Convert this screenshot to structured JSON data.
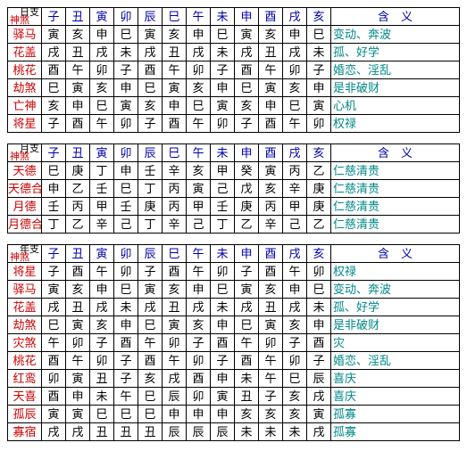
{
  "branches": [
    "子",
    "丑",
    "寅",
    "卯",
    "辰",
    "巳",
    "午",
    "未",
    "申",
    "酉",
    "戌",
    "亥"
  ],
  "meaning_header": "含义",
  "tables": [
    {
      "corner_top": "日支",
      "corner_bottom": "神煞",
      "rows": [
        {
          "label": "驿马",
          "cells": [
            "寅",
            "亥",
            "申",
            "巳",
            "寅",
            "亥",
            "申",
            "巳",
            "寅",
            "亥",
            "申",
            "巳"
          ],
          "meaning": "变动、奔波"
        },
        {
          "label": "花盖",
          "cells": [
            "戌",
            "丑",
            "戌",
            "未",
            "戌",
            "丑",
            "戌",
            "未",
            "戌",
            "丑",
            "戌",
            "未"
          ],
          "meaning": "孤、好学"
        },
        {
          "label": "桃花",
          "cells": [
            "酉",
            "午",
            "卯",
            "子",
            "酉",
            "午",
            "卯",
            "子",
            "酉",
            "午",
            "卯",
            "子"
          ],
          "meaning": "婚恋、淫乱"
        },
        {
          "label": "劫煞",
          "cells": [
            "巳",
            "寅",
            "亥",
            "申",
            "巳",
            "寅",
            "亥",
            "申",
            "巳",
            "寅",
            "亥",
            "申"
          ],
          "meaning": "是非破财"
        },
        {
          "label": "亡神",
          "cells": [
            "亥",
            "申",
            "巳",
            "寅",
            "亥",
            "申",
            "巳",
            "寅",
            "亥",
            "申",
            "巳",
            "寅"
          ],
          "meaning": "心机"
        },
        {
          "label": "将星",
          "cells": [
            "子",
            "酉",
            "午",
            "卯",
            "子",
            "酉",
            "午",
            "卯",
            "子",
            "酉",
            "午",
            "卯"
          ],
          "meaning": "权禄"
        }
      ]
    },
    {
      "corner_top": "月支",
      "corner_bottom": "神煞",
      "rows": [
        {
          "label": "天德",
          "cells": [
            "巳",
            "庚",
            "丁",
            "申",
            "壬",
            "辛",
            "亥",
            "甲",
            "癸",
            "寅",
            "丙",
            "乙"
          ],
          "meaning": "仁慈清贵"
        },
        {
          "label": "天德合",
          "cells": [
            "申",
            "乙",
            "壬",
            "巳",
            "丁",
            "丙",
            "寅",
            "己",
            "戊",
            "亥",
            "辛",
            "庚"
          ],
          "meaning": "仁慈清贵"
        },
        {
          "label": "月德",
          "cells": [
            "壬",
            "丙",
            "甲",
            "壬",
            "庚",
            "丙",
            "甲",
            "壬",
            "庚",
            "丙",
            "甲",
            "庚"
          ],
          "meaning": "仁慈清贵"
        },
        {
          "label": "月德合",
          "cells": [
            "丁",
            "乙",
            "辛",
            "己",
            "丁",
            "辛",
            "己",
            "丁",
            "乙",
            "辛",
            "己",
            "乙"
          ],
          "meaning": "仁慈清贵"
        }
      ]
    },
    {
      "corner_top": "年支",
      "corner_bottom": "神煞",
      "rows": [
        {
          "label": "将星",
          "cells": [
            "子",
            "酉",
            "午",
            "卯",
            "子",
            "酉",
            "午",
            "卯",
            "子",
            "酉",
            "午",
            "卯"
          ],
          "meaning": "权禄"
        },
        {
          "label": "驿马",
          "cells": [
            "寅",
            "亥",
            "申",
            "巳",
            "寅",
            "亥",
            "申",
            "巳",
            "寅",
            "亥",
            "申",
            "巳"
          ],
          "meaning": "变动、奔波"
        },
        {
          "label": "花盖",
          "cells": [
            "戌",
            "丑",
            "戌",
            "未",
            "戌",
            "丑",
            "戌",
            "未",
            "戌",
            "丑",
            "戌",
            "未"
          ],
          "meaning": "孤、好学"
        },
        {
          "label": "劫煞",
          "cells": [
            "巳",
            "寅",
            "亥",
            "申",
            "巳",
            "寅",
            "亥",
            "申",
            "巳",
            "寅",
            "亥",
            "申"
          ],
          "meaning": "是非破财"
        },
        {
          "label": "灾煞",
          "cells": [
            "午",
            "卯",
            "子",
            "酉",
            "午",
            "卯",
            "子",
            "酉",
            "午",
            "卯",
            "子",
            "酉"
          ],
          "meaning": "灾"
        },
        {
          "label": "桃花",
          "cells": [
            "酉",
            "午",
            "卯",
            "子",
            "酉",
            "午",
            "卯",
            "子",
            "酉",
            "午",
            "卯",
            "子"
          ],
          "meaning": "婚恋、淫乱"
        },
        {
          "label": "红鸾",
          "cells": [
            "卯",
            "寅",
            "丑",
            "子",
            "亥",
            "戌",
            "酉",
            "申",
            "未",
            "午",
            "巳",
            "辰"
          ],
          "meaning": "喜庆"
        },
        {
          "label": "天喜",
          "cells": [
            "酉",
            "申",
            "未",
            "午",
            "巳",
            "辰",
            "卯",
            "寅",
            "丑",
            "子",
            "亥",
            "戌"
          ],
          "meaning": "喜庆"
        },
        {
          "label": "孤辰",
          "cells": [
            "寅",
            "寅",
            "巳",
            "巳",
            "巳",
            "申",
            "申",
            "申",
            "亥",
            "亥",
            "亥",
            "寅"
          ],
          "meaning": "孤寡"
        },
        {
          "label": "寡宿",
          "cells": [
            "戌",
            "戌",
            "丑",
            "丑",
            "丑",
            "辰",
            "辰",
            "辰",
            "未",
            "未",
            "未",
            "戌"
          ],
          "meaning": "孤寡"
        }
      ]
    }
  ]
}
